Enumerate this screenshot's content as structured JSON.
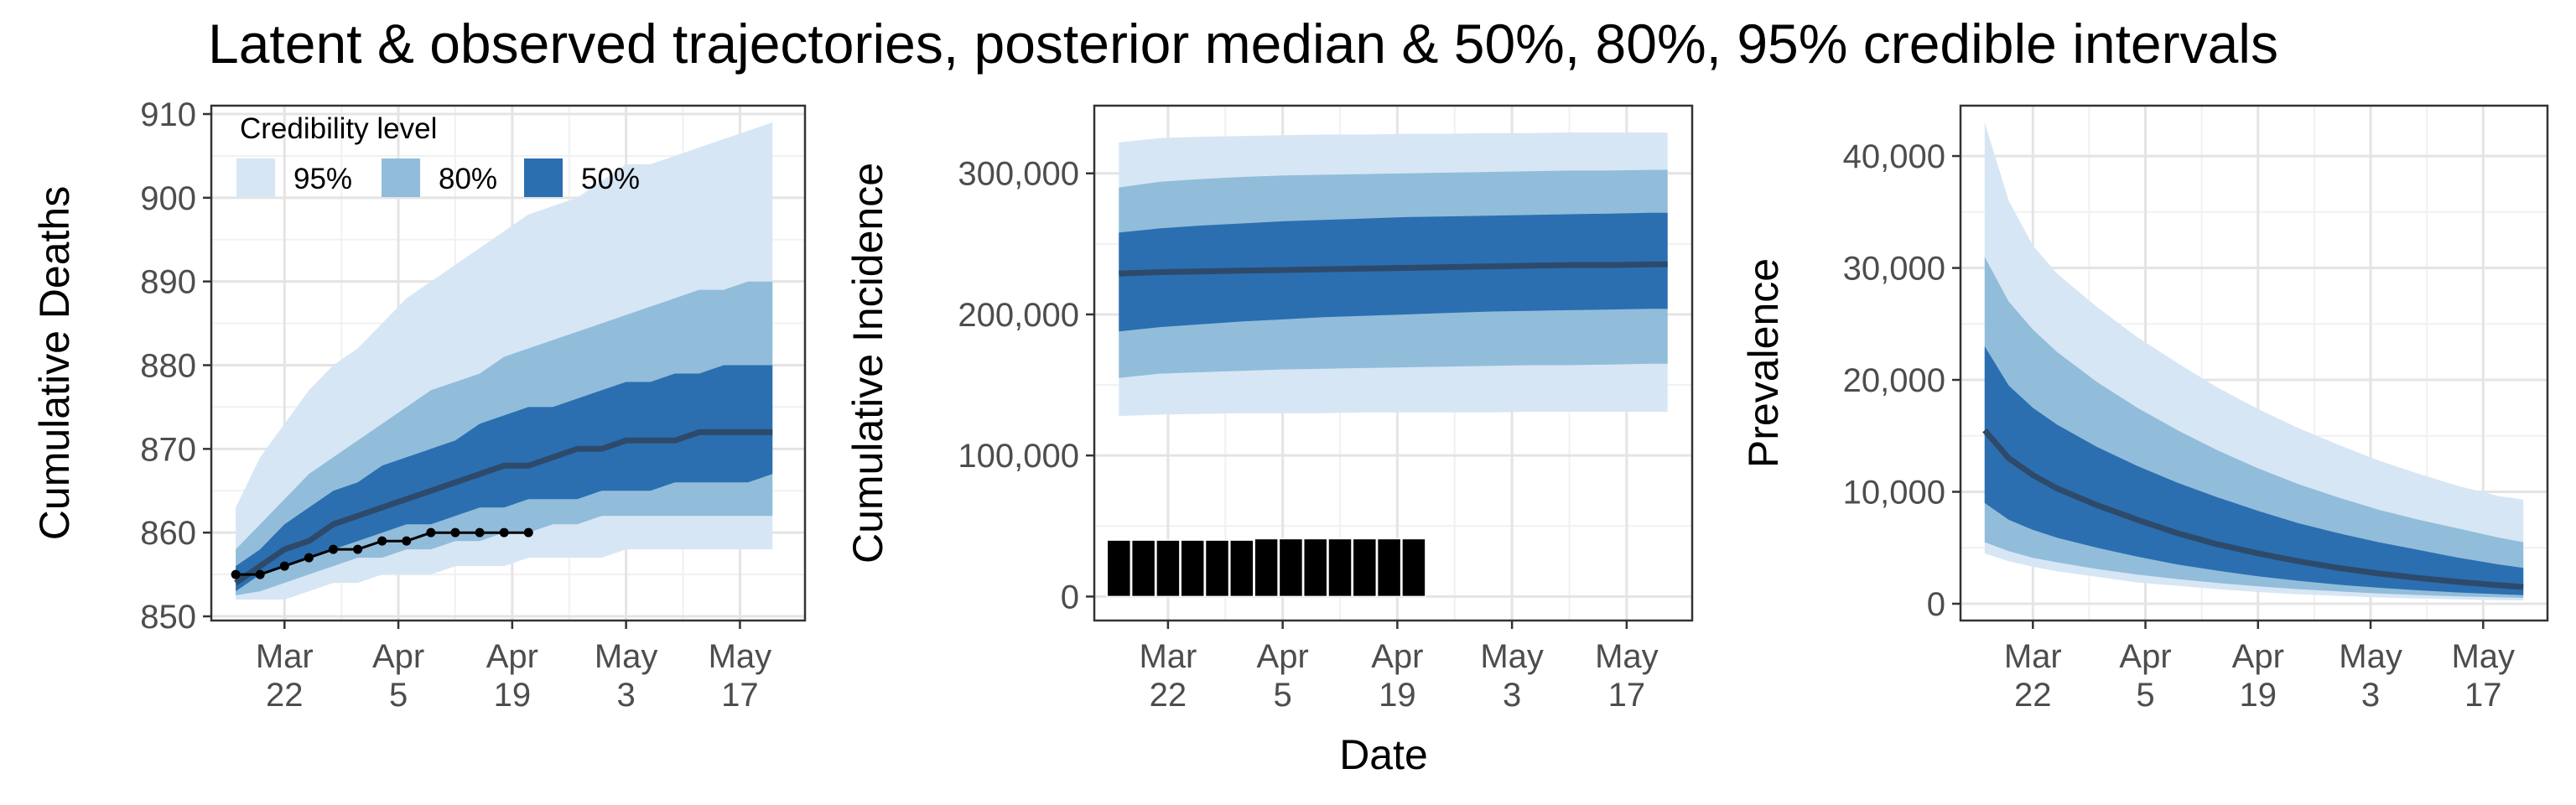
{
  "title": "Latent & observed trajectories, posterior median & 50%, 80%, 95% credible intervals",
  "shared_xlabel": "Date",
  "colors": {
    "band95": "#d7e6f4",
    "band80": "#91bddb",
    "band50": "#2b6fb1",
    "median": "#2e4a6b",
    "observed": "#000000",
    "grid_major": "#e4e4e4",
    "grid_minor": "#f1f1f1",
    "axis_text": "#4d4d4d"
  },
  "legend": {
    "title": "Credibility level",
    "items": [
      {
        "label": "95%",
        "color": "#d7e6f4"
      },
      {
        "label": "80%",
        "color": "#91bddb"
      },
      {
        "label": "50%",
        "color": "#2b6fb1"
      }
    ],
    "placement": "top-left inside first panel"
  },
  "chart_data": [
    {
      "type": "area",
      "ylabel": "Cumulative Deaths",
      "xlabel": "",
      "xlim": [
        "2020-03-13",
        "2020-05-25"
      ],
      "ylim": [
        849.5,
        911
      ],
      "x_ticks": [
        {
          "date": "2020-03-22",
          "label": "Mar\n22"
        },
        {
          "date": "2020-04-05",
          "label": "Apr\n5"
        },
        {
          "date": "2020-04-19",
          "label": "Apr\n19"
        },
        {
          "date": "2020-05-03",
          "label": "May\n3"
        },
        {
          "date": "2020-05-17",
          "label": "May\n17"
        }
      ],
      "y_ticks": [
        850,
        860,
        870,
        880,
        890,
        900,
        910
      ],
      "y_tick_labels": [
        "850",
        "860",
        "870",
        "880",
        "890",
        "900",
        "910"
      ],
      "grid": true,
      "x": [
        "2020-03-16",
        "2020-03-19",
        "2020-03-22",
        "2020-03-25",
        "2020-03-28",
        "2020-03-31",
        "2020-04-03",
        "2020-04-06",
        "2020-04-09",
        "2020-04-12",
        "2020-04-15",
        "2020-04-18",
        "2020-04-21",
        "2020-04-24",
        "2020-04-27",
        "2020-04-30",
        "2020-05-03",
        "2020-05-06",
        "2020-05-09",
        "2020-05-12",
        "2020-05-15",
        "2020-05-18",
        "2020-05-21"
      ],
      "lo95": [
        852,
        852,
        852,
        853,
        854,
        854,
        855,
        855,
        855,
        856,
        856,
        856,
        857,
        857,
        857,
        857,
        858,
        858,
        858,
        858,
        858,
        858,
        858
      ],
      "lo80": [
        852.5,
        853,
        854,
        855,
        856,
        857,
        857,
        858,
        858,
        859,
        859,
        860,
        860,
        861,
        861,
        862,
        862,
        862,
        862,
        862,
        862,
        862,
        862
      ],
      "lo50": [
        853,
        855,
        856,
        857,
        858,
        859,
        860,
        861,
        861,
        862,
        863,
        863,
        864,
        864,
        864,
        865,
        865,
        865,
        866,
        866,
        866,
        866,
        867
      ],
      "median": [
        854,
        856,
        858,
        859,
        861,
        862,
        863,
        864,
        865,
        866,
        867,
        868,
        868,
        869,
        870,
        870,
        871,
        871,
        871,
        872,
        872,
        872,
        872
      ],
      "hi50": [
        856,
        858,
        861,
        863,
        865,
        866,
        868,
        869,
        870,
        871,
        873,
        874,
        875,
        875,
        876,
        877,
        878,
        878,
        879,
        879,
        880,
        880,
        880
      ],
      "hi80": [
        858,
        861,
        864,
        867,
        869,
        871,
        873,
        875,
        877,
        878,
        879,
        881,
        882,
        883,
        884,
        885,
        886,
        887,
        888,
        889,
        889,
        890,
        890
      ],
      "hi95": [
        863,
        869,
        873,
        877,
        880,
        882,
        885,
        888,
        890,
        892,
        894,
        896,
        898,
        899,
        900,
        902,
        904,
        904,
        905,
        906,
        907,
        908,
        909
      ],
      "observed": {
        "x": [
          "2020-03-16",
          "2020-03-19",
          "2020-03-22",
          "2020-03-25",
          "2020-03-28",
          "2020-03-31",
          "2020-04-03",
          "2020-04-06",
          "2020-04-09",
          "2020-04-12",
          "2020-04-15",
          "2020-04-18",
          "2020-04-21"
        ],
        "y": [
          855,
          855,
          856,
          857,
          858,
          858,
          859,
          859,
          860,
          860,
          860,
          860,
          860
        ]
      }
    },
    {
      "type": "area",
      "ylabel": "Cumulative Incidence",
      "xlabel": "Date",
      "xlim": [
        "2020-03-13",
        "2020-05-25"
      ],
      "ylim": [
        -17000,
        348000
      ],
      "x_ticks": [
        {
          "date": "2020-03-22",
          "label": "Mar\n22"
        },
        {
          "date": "2020-04-05",
          "label": "Apr\n5"
        },
        {
          "date": "2020-04-19",
          "label": "Apr\n19"
        },
        {
          "date": "2020-05-03",
          "label": "May\n3"
        },
        {
          "date": "2020-05-17",
          "label": "May\n17"
        }
      ],
      "y_ticks": [
        0,
        100000,
        200000,
        300000
      ],
      "y_tick_labels": [
        "0",
        "100,000",
        "200,000",
        "300,000"
      ],
      "grid": true,
      "x": [
        "2020-03-16",
        "2020-03-21",
        "2020-03-26",
        "2020-03-31",
        "2020-04-05",
        "2020-04-10",
        "2020-04-15",
        "2020-04-20",
        "2020-04-25",
        "2020-04-30",
        "2020-05-05",
        "2020-05-10",
        "2020-05-15",
        "2020-05-20",
        "2020-05-22"
      ],
      "lo95": [
        128000,
        129000,
        129500,
        130000,
        130000,
        130000,
        130500,
        130500,
        130500,
        130500,
        131000,
        131000,
        131000,
        131000,
        131000
      ],
      "lo80": [
        155000,
        158000,
        159000,
        160000,
        161000,
        161500,
        162000,
        162500,
        163000,
        163500,
        164000,
        164000,
        164500,
        165000,
        165000
      ],
      "lo50": [
        188000,
        191000,
        193000,
        195000,
        196500,
        198000,
        199000,
        200000,
        201000,
        202000,
        202500,
        203000,
        203500,
        204000,
        204000
      ],
      "median": [
        229000,
        230000,
        230500,
        231000,
        231500,
        232000,
        232500,
        233000,
        233500,
        234000,
        234500,
        235000,
        235000,
        235500,
        235500
      ],
      "hi50": [
        258000,
        261000,
        263000,
        264500,
        266000,
        267000,
        268000,
        269000,
        269500,
        270000,
        270500,
        271000,
        271500,
        272000,
        272000
      ],
      "hi80": [
        290000,
        294000,
        296000,
        297500,
        298500,
        299000,
        299500,
        300000,
        300500,
        301000,
        301500,
        302000,
        302000,
        302500,
        302500
      ],
      "hi95": [
        322000,
        325000,
        326000,
        326500,
        327000,
        327500,
        327500,
        328000,
        328000,
        328500,
        328500,
        329000,
        329000,
        329000,
        329000
      ],
      "bars": {
        "x": [
          "2020-03-16",
          "2020-03-19",
          "2020-03-22",
          "2020-03-25",
          "2020-03-28",
          "2020-03-31",
          "2020-04-03",
          "2020-04-06",
          "2020-04-09",
          "2020-04-12",
          "2020-04-15",
          "2020-04-18",
          "2020-04-21"
        ],
        "values": [
          40000,
          40000,
          40000,
          40000,
          40000,
          40000,
          41000,
          41000,
          41000,
          41000,
          41000,
          41000,
          41000
        ]
      }
    },
    {
      "type": "area",
      "ylabel": "Prevalence",
      "xlabel": "",
      "xlim": [
        "2020-03-13",
        "2020-05-25"
      ],
      "ylim": [
        -1500,
        44500
      ],
      "x_ticks": [
        {
          "date": "2020-03-22",
          "label": "Mar\n22"
        },
        {
          "date": "2020-04-05",
          "label": "Apr\n5"
        },
        {
          "date": "2020-04-19",
          "label": "Apr\n19"
        },
        {
          "date": "2020-05-03",
          "label": "May\n3"
        },
        {
          "date": "2020-05-17",
          "label": "May\n17"
        }
      ],
      "y_ticks": [
        0,
        10000,
        20000,
        30000,
        40000
      ],
      "y_tick_labels": [
        "0",
        "10,000",
        "20,000",
        "30,000",
        "40,000"
      ],
      "grid": true,
      "x": [
        "2020-03-16",
        "2020-03-19",
        "2020-03-22",
        "2020-03-25",
        "2020-03-30",
        "2020-04-04",
        "2020-04-09",
        "2020-04-14",
        "2020-04-19",
        "2020-04-24",
        "2020-04-29",
        "2020-05-04",
        "2020-05-09",
        "2020-05-14",
        "2020-05-19",
        "2020-05-22"
      ],
      "lo95": [
        4500,
        3800,
        3300,
        2900,
        2400,
        1900,
        1600,
        1300,
        1050,
        850,
        700,
        560,
        460,
        380,
        320,
        290
      ],
      "lo80": [
        5500,
        4700,
        4100,
        3700,
        3100,
        2600,
        2200,
        1850,
        1550,
        1300,
        1100,
        920,
        780,
        660,
        570,
        520
      ],
      "lo50": [
        9000,
        7500,
        6600,
        5900,
        5000,
        4200,
        3500,
        2950,
        2450,
        2050,
        1700,
        1430,
        1200,
        1000,
        850,
        760
      ],
      "median": [
        15500,
        13000,
        11500,
        10300,
        8800,
        7500,
        6300,
        5300,
        4500,
        3800,
        3200,
        2700,
        2300,
        1950,
        1650,
        1500
      ],
      "hi50": [
        23000,
        19500,
        17500,
        16000,
        14000,
        12300,
        10800,
        9500,
        8300,
        7200,
        6300,
        5500,
        4800,
        4100,
        3500,
        3200
      ],
      "hi80": [
        31000,
        27000,
        24500,
        22500,
        19800,
        17500,
        15500,
        13700,
        12100,
        10700,
        9500,
        8400,
        7500,
        6700,
        5900,
        5500
      ],
      "hi95": [
        43000,
        36000,
        32000,
        29500,
        26500,
        23800,
        21500,
        19300,
        17400,
        15700,
        14200,
        12800,
        11600,
        10500,
        9600,
        9300
      ]
    }
  ]
}
